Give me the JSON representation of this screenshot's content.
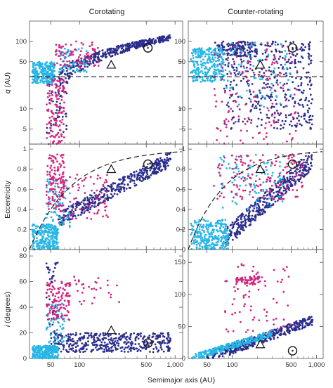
{
  "figure": {
    "col_titles": [
      "Corotating",
      "Counter-rotating"
    ],
    "xlabel": "Semimajor axis",
    "xlabel_unit": "AU",
    "ylabels": {
      "q": {
        "var": "q",
        "unit": "AU"
      },
      "e": "Eccentricity",
      "i": {
        "var": "i",
        "unit": "degrees"
      }
    }
  },
  "colors": {
    "dark_blue": "#2b2d8c",
    "cyan": "#27b6e6",
    "magenta": "#d4257f",
    "axis": "#555555"
  },
  "chart_data": [
    {
      "type": "scatter",
      "panel": "q-corotating",
      "xscale": "log",
      "yscale": "log",
      "xlim": [
        30,
        1200
      ],
      "ylim": [
        3,
        200
      ],
      "x_ticks": [
        "50",
        "100",
        "500",
        "1,000"
      ],
      "x_tick_values": [
        50,
        100,
        500,
        1000
      ],
      "y_ticks": [
        "5",
        "10",
        "50",
        "100"
      ],
      "y_tick_values": [
        5,
        10,
        50,
        100
      ],
      "dashed_line": {
        "kind": "horizontal",
        "y": 30
      },
      "markers": [
        {
          "shape": "triangle",
          "x": 215,
          "y": 45
        },
        {
          "shape": "circle",
          "x": 520,
          "y": 80
        }
      ],
      "series": [
        {
          "color": "dark_blue",
          "clusters": [
            {
              "x": [
                60,
                900
              ],
              "y": [
                30,
                115
              ],
              "n": 420,
              "trend": "rise"
            },
            {
              "x": [
                45,
                75
              ],
              "y": [
                4,
                40
              ],
              "n": 60
            }
          ]
        },
        {
          "color": "cyan",
          "clusters": [
            {
              "x": [
                32,
                55
              ],
              "y": [
                24,
                50
              ],
              "n": 260
            },
            {
              "x": [
                55,
                120
              ],
              "y": [
                35,
                80
              ],
              "n": 60
            }
          ]
        },
        {
          "color": "magenta",
          "clusters": [
            {
              "x": [
                45,
                70
              ],
              "y": [
                3,
                30
              ],
              "n": 130
            },
            {
              "x": [
                55,
                160
              ],
              "y": [
                40,
                100
              ],
              "n": 80
            }
          ]
        }
      ]
    },
    {
      "type": "scatter",
      "panel": "q-counter",
      "xscale": "log",
      "yscale": "log",
      "xlim": [
        30,
        1200
      ],
      "ylim": [
        3,
        200
      ],
      "x_ticks": [
        "50",
        "100",
        "500",
        "1,000"
      ],
      "x_tick_values": [
        50,
        100,
        500,
        1000
      ],
      "y_ticks": [
        "5",
        "10",
        "50",
        "100"
      ],
      "y_tick_values": [
        5,
        10,
        50,
        100
      ],
      "dashed_line": {
        "kind": "horizontal",
        "y": 30
      },
      "markers": [
        {
          "shape": "triangle",
          "x": 215,
          "y": 45
        },
        {
          "shape": "circle",
          "x": 520,
          "y": 80
        }
      ],
      "series": [
        {
          "color": "dark_blue",
          "clusters": [
            {
              "x": [
                80,
                900
              ],
              "y": [
                5,
                100
              ],
              "n": 380
            },
            {
              "x": [
                60,
                200
              ],
              "y": [
                60,
                100
              ],
              "n": 120
            }
          ]
        },
        {
          "color": "cyan",
          "clusters": [
            {
              "x": [
                32,
                80
              ],
              "y": [
                25,
                80
              ],
              "n": 280
            },
            {
              "x": [
                80,
                500
              ],
              "y": [
                10,
                100
              ],
              "n": 80
            }
          ]
        },
        {
          "color": "magenta",
          "clusters": [
            {
              "x": [
                60,
                600
              ],
              "y": [
                3,
                100
              ],
              "n": 150
            }
          ]
        }
      ]
    },
    {
      "type": "scatter",
      "panel": "e-corotating",
      "xscale": "log",
      "yscale": "linear",
      "xlim": [
        30,
        1200
      ],
      "ylim": [
        0,
        1.05
      ],
      "x_ticks": [
        "50",
        "100",
        "500",
        "1,000"
      ],
      "x_tick_values": [
        50,
        100,
        500,
        1000
      ],
      "y_ticks": [
        "0",
        "0.2",
        "0.4",
        "0.6",
        "0.8",
        "1"
      ],
      "y_tick_values": [
        0,
        0.2,
        0.4,
        0.6,
        0.8,
        1
      ],
      "dashed_line": {
        "kind": "curve",
        "q": 30
      },
      "markers": [
        {
          "shape": "triangle",
          "x": 215,
          "y": 0.8
        },
        {
          "shape": "circle",
          "x": 520,
          "y": 0.85
        }
      ],
      "series": [
        {
          "color": "dark_blue",
          "clusters": [
            {
              "x": [
                60,
                900
              ],
              "y": [
                0.3,
                0.9
              ],
              "n": 420,
              "trend": "rise"
            }
          ]
        },
        {
          "color": "cyan",
          "clusters": [
            {
              "x": [
                32,
                60
              ],
              "y": [
                0.0,
                0.25
              ],
              "n": 260
            },
            {
              "x": [
                45,
                80
              ],
              "y": [
                0.2,
                0.7
              ],
              "n": 80
            }
          ]
        },
        {
          "color": "magenta",
          "clusters": [
            {
              "x": [
                45,
                70
              ],
              "y": [
                0.4,
                0.95
              ],
              "n": 130
            },
            {
              "x": [
                60,
                200
              ],
              "y": [
                0.3,
                0.75
              ],
              "n": 80
            }
          ]
        }
      ]
    },
    {
      "type": "scatter",
      "panel": "e-counter",
      "xscale": "log",
      "yscale": "linear",
      "xlim": [
        30,
        1200
      ],
      "ylim": [
        0,
        1.05
      ],
      "x_ticks": [
        "50",
        "100",
        "500",
        "1,000"
      ],
      "x_tick_values": [
        50,
        100,
        500,
        1000
      ],
      "y_ticks": [
        "0",
        "0.2",
        "0.4",
        "0.6",
        "0.8",
        "1"
      ],
      "y_tick_values": [
        0,
        0.2,
        0.4,
        0.6,
        0.8,
        1
      ],
      "dashed_line": {
        "kind": "curve",
        "q": 30
      },
      "markers": [
        {
          "shape": "triangle",
          "x": 215,
          "y": 0.8
        },
        {
          "shape": "circle",
          "x": 520,
          "y": 0.85
        }
      ],
      "series": [
        {
          "color": "dark_blue",
          "clusters": [
            {
              "x": [
                80,
                900
              ],
              "y": [
                0.1,
                0.9
              ],
              "n": 420,
              "trend": "rise"
            }
          ]
        },
        {
          "color": "cyan",
          "clusters": [
            {
              "x": [
                32,
                90
              ],
              "y": [
                0.0,
                0.3
              ],
              "n": 280
            },
            {
              "x": [
                70,
                400
              ],
              "y": [
                0.4,
                0.95
              ],
              "n": 100
            }
          ]
        },
        {
          "color": "magenta",
          "clusters": [
            {
              "x": [
                60,
                700
              ],
              "y": [
                0.5,
                0.95
              ],
              "n": 150
            }
          ]
        }
      ]
    },
    {
      "type": "scatter",
      "panel": "i-corotating",
      "xscale": "log",
      "yscale": "linear",
      "xlim": [
        30,
        1200
      ],
      "ylim": [
        0,
        85
      ],
      "x_ticks": [
        "50",
        "100",
        "500",
        "1,000"
      ],
      "x_tick_values": [
        50,
        100,
        500,
        1000
      ],
      "y_ticks": [
        "0",
        "20",
        "40",
        "60",
        "80"
      ],
      "y_tick_values": [
        0,
        20,
        40,
        60,
        80
      ],
      "markers": [
        {
          "shape": "triangle",
          "x": 215,
          "y": 22
        },
        {
          "shape": "circle",
          "x": 520,
          "y": 12
        }
      ],
      "series": [
        {
          "color": "dark_blue",
          "clusters": [
            {
              "x": [
                50,
                900
              ],
              "y": [
                5,
                20
              ],
              "n": 420
            },
            {
              "x": [
                45,
                60
              ],
              "y": [
                20,
                75
              ],
              "n": 40
            }
          ]
        },
        {
          "color": "cyan",
          "clusters": [
            {
              "x": [
                32,
                60
              ],
              "y": [
                0,
                10
              ],
              "n": 260
            },
            {
              "x": [
                45,
                70
              ],
              "y": [
                10,
                45
              ],
              "n": 60
            }
          ]
        },
        {
          "color": "magenta",
          "clusters": [
            {
              "x": [
                45,
                80
              ],
              "y": [
                30,
                62
              ],
              "n": 120
            },
            {
              "x": [
                80,
                260
              ],
              "y": [
                40,
                65
              ],
              "n": 30
            }
          ]
        }
      ]
    },
    {
      "type": "scatter",
      "panel": "i-counter",
      "xscale": "log",
      "yscale": "linear",
      "xlim": [
        30,
        1200
      ],
      "ylim": [
        0,
        170
      ],
      "x_ticks": [
        "50",
        "100",
        "500",
        "1,000"
      ],
      "x_tick_values": [
        50,
        100,
        500,
        1000
      ],
      "y_ticks": [
        "0",
        "50",
        "100",
        "150"
      ],
      "y_tick_values": [
        0,
        50,
        100,
        150
      ],
      "markers": [
        {
          "shape": "triangle",
          "x": 215,
          "y": 22
        },
        {
          "shape": "circle",
          "x": 520,
          "y": 12
        }
      ],
      "series": [
        {
          "color": "dark_blue",
          "clusters": [
            {
              "x": [
                50,
                900
              ],
              "y": [
                0,
                60
              ],
              "n": 420,
              "trend": "rise"
            }
          ]
        },
        {
          "color": "cyan",
          "clusters": [
            {
              "x": [
                32,
                300
              ],
              "y": [
                0,
                40
              ],
              "n": 280,
              "trend": "rise"
            }
          ]
        },
        {
          "color": "magenta",
          "clusters": [
            {
              "x": [
                110,
                220
              ],
              "y": [
                115,
                128
              ],
              "n": 60
            },
            {
              "x": [
                80,
                500
              ],
              "y": [
                40,
                150
              ],
              "n": 70
            }
          ]
        }
      ]
    }
  ]
}
